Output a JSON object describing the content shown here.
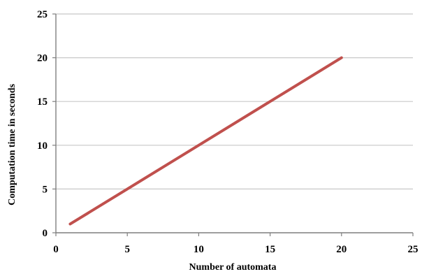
{
  "chart_data": {
    "type": "line",
    "title": "",
    "xlabel": "Number of automata",
    "ylabel": "Computation time in seconds",
    "xlim": [
      0,
      25
    ],
    "ylim": [
      0,
      25
    ],
    "xticks": [
      0,
      5,
      10,
      15,
      20,
      25
    ],
    "yticks": [
      0,
      5,
      10,
      15,
      20,
      25
    ],
    "grid": "horizontal",
    "legend": "none",
    "series": [
      {
        "color": "#c0504d",
        "x": [
          1,
          5,
          10,
          15,
          20
        ],
        "y": [
          1,
          5,
          10,
          15,
          20
        ]
      }
    ]
  }
}
